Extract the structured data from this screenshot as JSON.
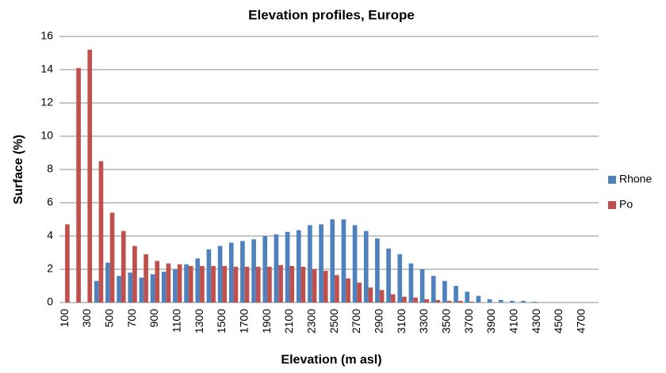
{
  "chart_data": {
    "type": "bar",
    "title": "Elevation profiles, Europe",
    "x_label": "Elevation (m asl)",
    "y_label": "Surface (%)",
    "categories": [
      "100",
      null,
      "300",
      null,
      "500",
      null,
      "700",
      null,
      "900",
      null,
      "1100",
      null,
      "1300",
      null,
      "1500",
      null,
      "1700",
      null,
      "1900",
      null,
      "2100",
      null,
      "2300",
      null,
      "2500",
      null,
      "2700",
      null,
      "2900",
      null,
      "3100",
      null,
      "3300",
      null,
      "3500",
      null,
      "3700",
      null,
      "3900",
      null,
      "4100",
      null,
      "4300",
      null,
      "4500",
      null,
      "4700",
      null
    ],
    "series": [
      {
        "name": "Rhone",
        "color": "#4f81bd",
        "values": [
          0,
          0,
          0,
          1.3,
          2.4,
          1.6,
          1.8,
          1.5,
          1.7,
          1.85,
          2.0,
          2.3,
          2.65,
          3.2,
          3.4,
          3.6,
          3.7,
          3.8,
          4.0,
          4.1,
          4.25,
          4.35,
          4.65,
          4.7,
          5.0,
          5.0,
          4.65,
          4.3,
          3.85,
          3.25,
          2.9,
          2.35,
          2.0,
          1.6,
          1.3,
          1.0,
          0.65,
          0.4,
          0.2,
          0.15,
          0.1,
          0.1,
          0.05,
          0,
          0,
          0,
          0,
          0
        ]
      },
      {
        "name": "Po",
        "color": "#c0504d",
        "values": [
          4.7,
          14.1,
          15.2,
          8.5,
          5.4,
          4.3,
          3.4,
          2.9,
          2.5,
          2.35,
          2.3,
          2.2,
          2.2,
          2.2,
          2.2,
          2.15,
          2.15,
          2.15,
          2.15,
          2.25,
          2.2,
          2.15,
          2.0,
          1.9,
          1.65,
          1.45,
          1.2,
          0.9,
          0.75,
          0.5,
          0.35,
          0.3,
          0.2,
          0.15,
          0.1,
          0.1,
          0.05,
          0,
          0,
          0,
          0,
          0,
          0,
          0,
          0,
          0,
          0,
          0
        ]
      }
    ],
    "ylim": [
      0,
      16
    ],
    "yticks": [
      0,
      2,
      4,
      6,
      8,
      10,
      12,
      14,
      16
    ],
    "grid": true,
    "legend": "right"
  }
}
